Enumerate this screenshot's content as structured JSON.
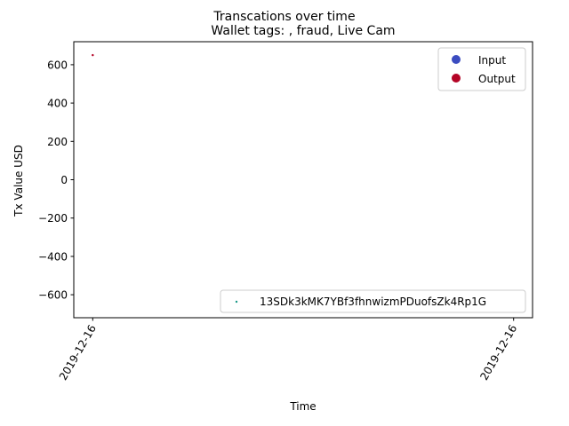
{
  "chart_data": {
    "type": "scatter",
    "suptitle": "Transcations over time",
    "title": "Wallet tags: , fraud, Live Cam",
    "xlabel": "Time",
    "ylabel": "Tx Value USD",
    "ylim": [
      -720,
      720
    ],
    "yticks": [
      -600,
      -400,
      -200,
      0,
      200,
      400,
      600
    ],
    "xlim": [
      -0.045,
      1.045
    ],
    "xticks": [
      {
        "x": 0,
        "label": "2019-12-16"
      },
      {
        "x": 1,
        "label": "2019-12-16"
      }
    ],
    "series": [
      {
        "name": "Output",
        "color": "#b40426",
        "points": [
          {
            "x": 0,
            "y": 650
          }
        ]
      }
    ],
    "legend_upper": {
      "placement": "upper-right",
      "entries": [
        {
          "label": "Input",
          "color": "#3b4cc0"
        },
        {
          "label": "Output",
          "color": "#b40426"
        }
      ]
    },
    "legend_lower": {
      "placement": "lower-right",
      "entries": [
        {
          "label": "13SDk3kMK7YBf3fhnwizmPDuofsZk4Rp1G",
          "color": "#1a9988"
        }
      ]
    },
    "grid": false
  }
}
